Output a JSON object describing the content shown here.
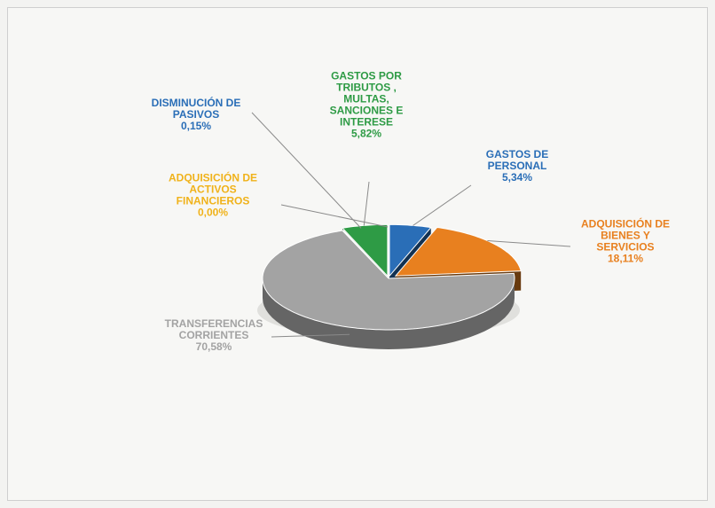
{
  "chart_data": {
    "type": "pie",
    "style": "3d",
    "title": "",
    "slices": [
      {
        "label": [
          "GASTOS DE",
          "PERSONAL"
        ],
        "value_label": "5,34%",
        "value": 5.34,
        "color": "#2a6eb7"
      },
      {
        "label": [
          "ADQUISICIÓN DE",
          "BIENES Y",
          "SERVICIOS"
        ],
        "value_label": "18,11%",
        "value": 18.11,
        "color": "#e8801f"
      },
      {
        "label": [
          "TRANSFERENCIAS",
          "CORRIENTES"
        ],
        "value_label": "70,58%",
        "value": 70.58,
        "color": "#a3a3a3"
      },
      {
        "label": [
          "ADQUISICIÓN DE",
          "ACTIVOS",
          "FINANCIEROS"
        ],
        "value_label": "0,00%",
        "value": 0.0,
        "color": "#f0b21a"
      },
      {
        "label": [
          "DISMINUCIÓN DE",
          "PASIVOS"
        ],
        "value_label": "0,15%",
        "value": 0.15,
        "color": "#2a6eb7"
      },
      {
        "label": [
          "GASTOS POR",
          "TRIBUTOS ,",
          "MULTAS,",
          "SANCIONES E",
          "INTERESE"
        ],
        "value_label": "5,82%",
        "value": 5.82,
        "color": "#2e9b45"
      }
    ]
  }
}
